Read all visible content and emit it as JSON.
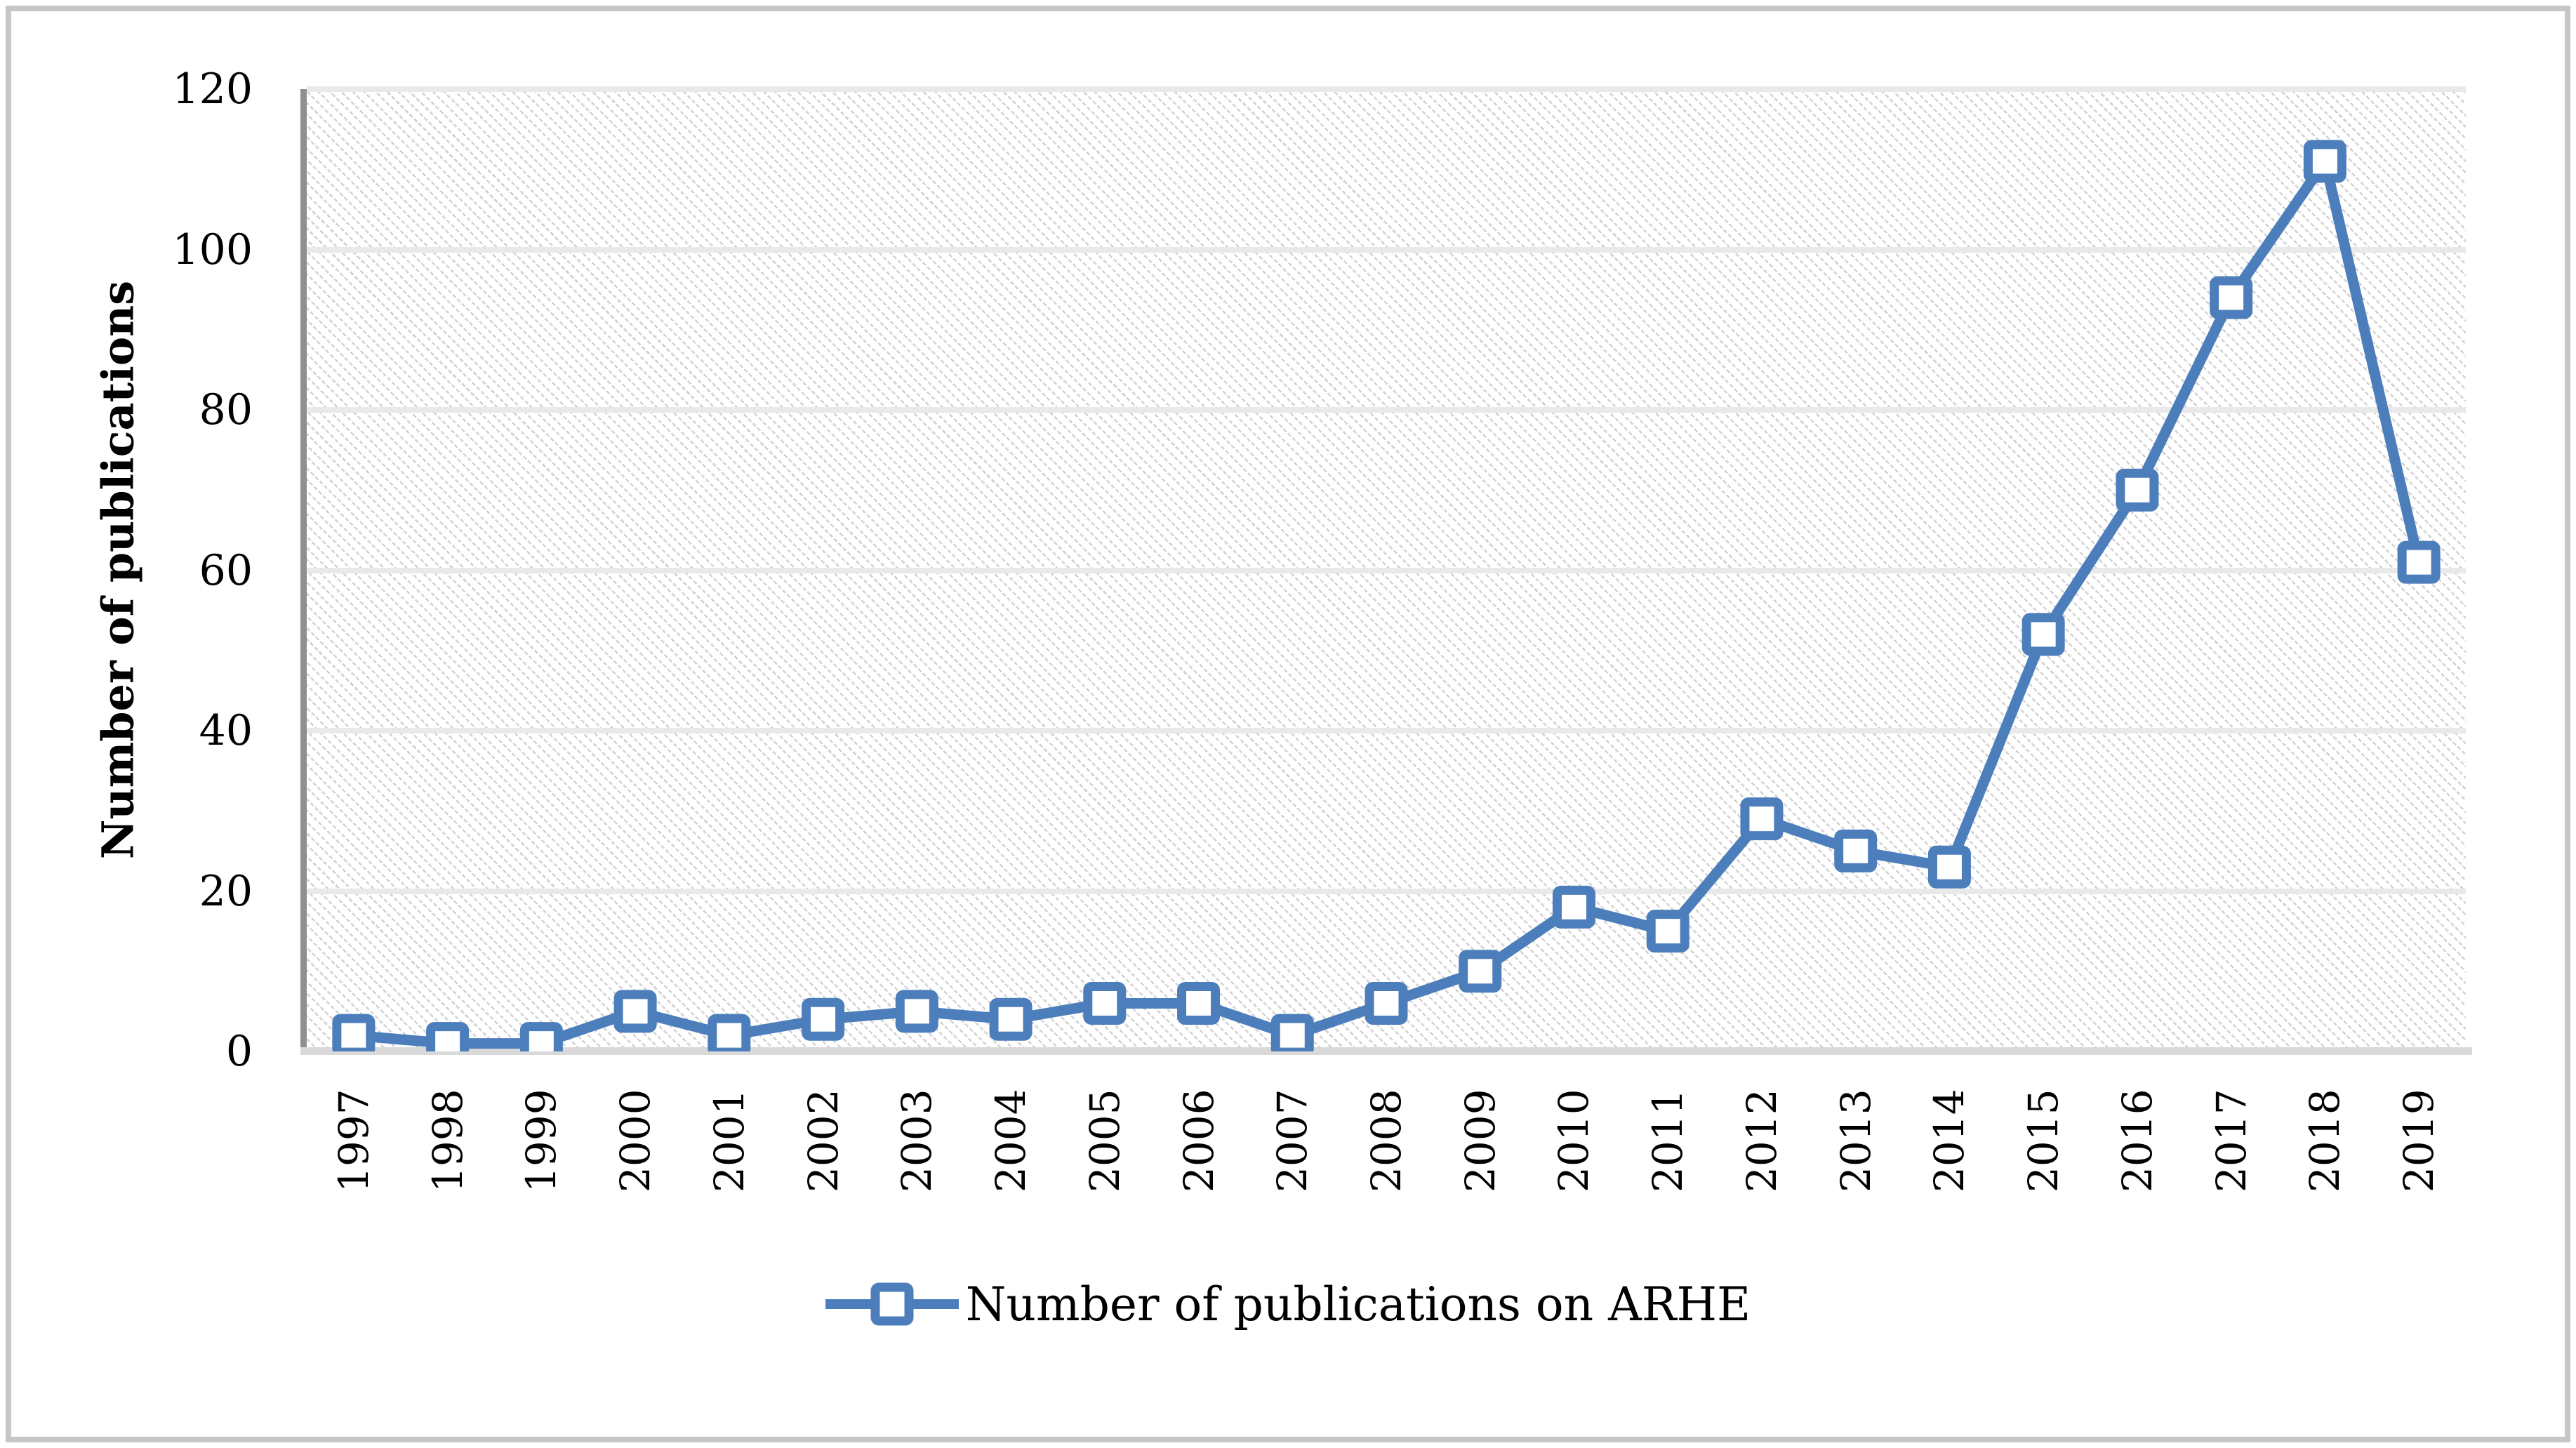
{
  "chart_data": {
    "type": "line",
    "x": [
      "1997",
      "1998",
      "1999",
      "2000",
      "2001",
      "2002",
      "2003",
      "2004",
      "2005",
      "2006",
      "2007",
      "2008",
      "2009",
      "2010",
      "2011",
      "2012",
      "2013",
      "2014",
      "2015",
      "2016",
      "2017",
      "2018",
      "2019"
    ],
    "series": [
      {
        "name": "Number of publications on ARHE",
        "values": [
          2,
          1,
          1,
          5,
          2,
          4,
          5,
          4,
          6,
          6,
          2,
          6,
          10,
          18,
          15,
          29,
          25,
          23,
          52,
          70,
          94,
          111,
          61
        ]
      }
    ],
    "title": "",
    "xlabel": "",
    "ylabel": "Number of publications",
    "ylim": [
      0,
      120
    ],
    "ytick_step": 20,
    "yticks": [
      "0",
      "20",
      "40",
      "60",
      "80",
      "100",
      "120"
    ],
    "grid": "horizontal",
    "legend_position": "bottom",
    "marker": "open-square",
    "plot_background": "diagonal-hatch"
  },
  "legend": {
    "label": "Number of publications on ARHE"
  },
  "axes": {
    "y_title": "Number of publications"
  },
  "colors": {
    "series_blue": "#4d7ebc",
    "marker_fill": "#ffffff",
    "gridline": "#e9e9e9",
    "y_axis_line": "#8f8f8f",
    "x_baseline": "#d9d9d9",
    "hatch": "#d2d2d2",
    "frame_border": "#c6c6c6",
    "text": "#000000"
  }
}
